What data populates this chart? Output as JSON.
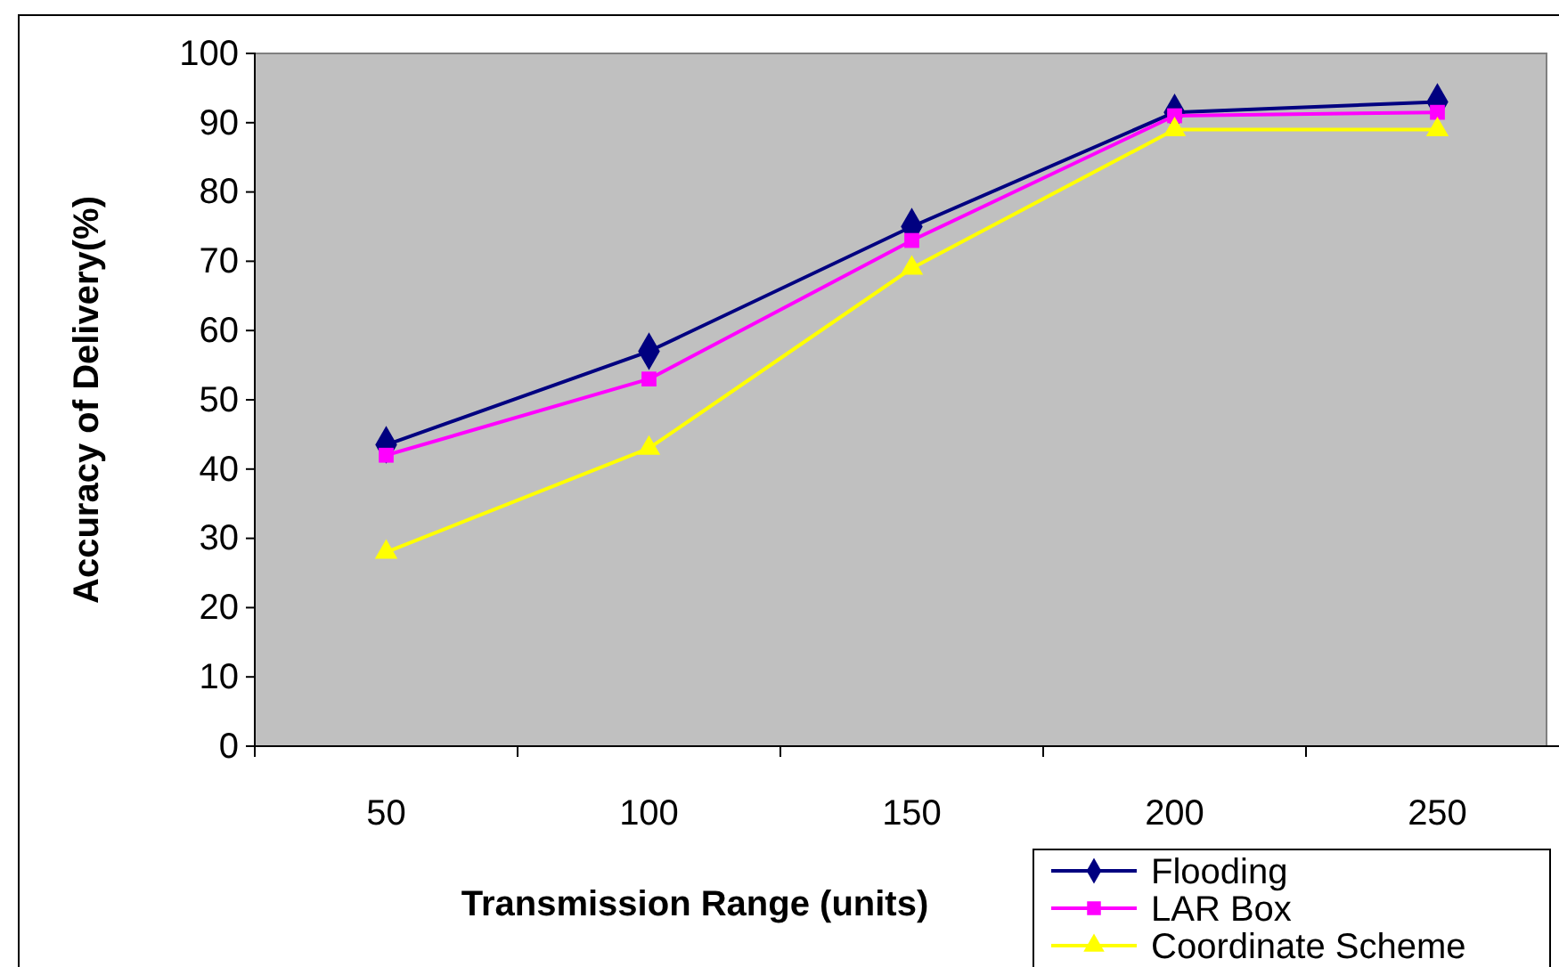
{
  "chart_data": {
    "type": "line",
    "xlabel": "Transmission Range (units)",
    "ylabel": "Accuracy of Delivery(%)",
    "categories": [
      "50",
      "100",
      "150",
      "200",
      "250"
    ],
    "ylim": [
      0,
      100
    ],
    "yticks": [
      0,
      10,
      20,
      30,
      40,
      50,
      60,
      70,
      80,
      90,
      100
    ],
    "grid": false,
    "legend": "bottom right",
    "series": [
      {
        "name": "Flooding",
        "color": "#000080",
        "marker": "diamond",
        "values": [
          43.5,
          57,
          75,
          91.5,
          93
        ]
      },
      {
        "name": "LAR Box",
        "color": "#ff00ff",
        "marker": "square",
        "values": [
          42,
          53,
          73,
          91,
          91.5
        ]
      },
      {
        "name": "Coordinate Scheme",
        "color": "#ffff00",
        "marker": "triangle",
        "values": [
          28,
          43,
          69,
          89,
          89
        ]
      }
    ]
  }
}
